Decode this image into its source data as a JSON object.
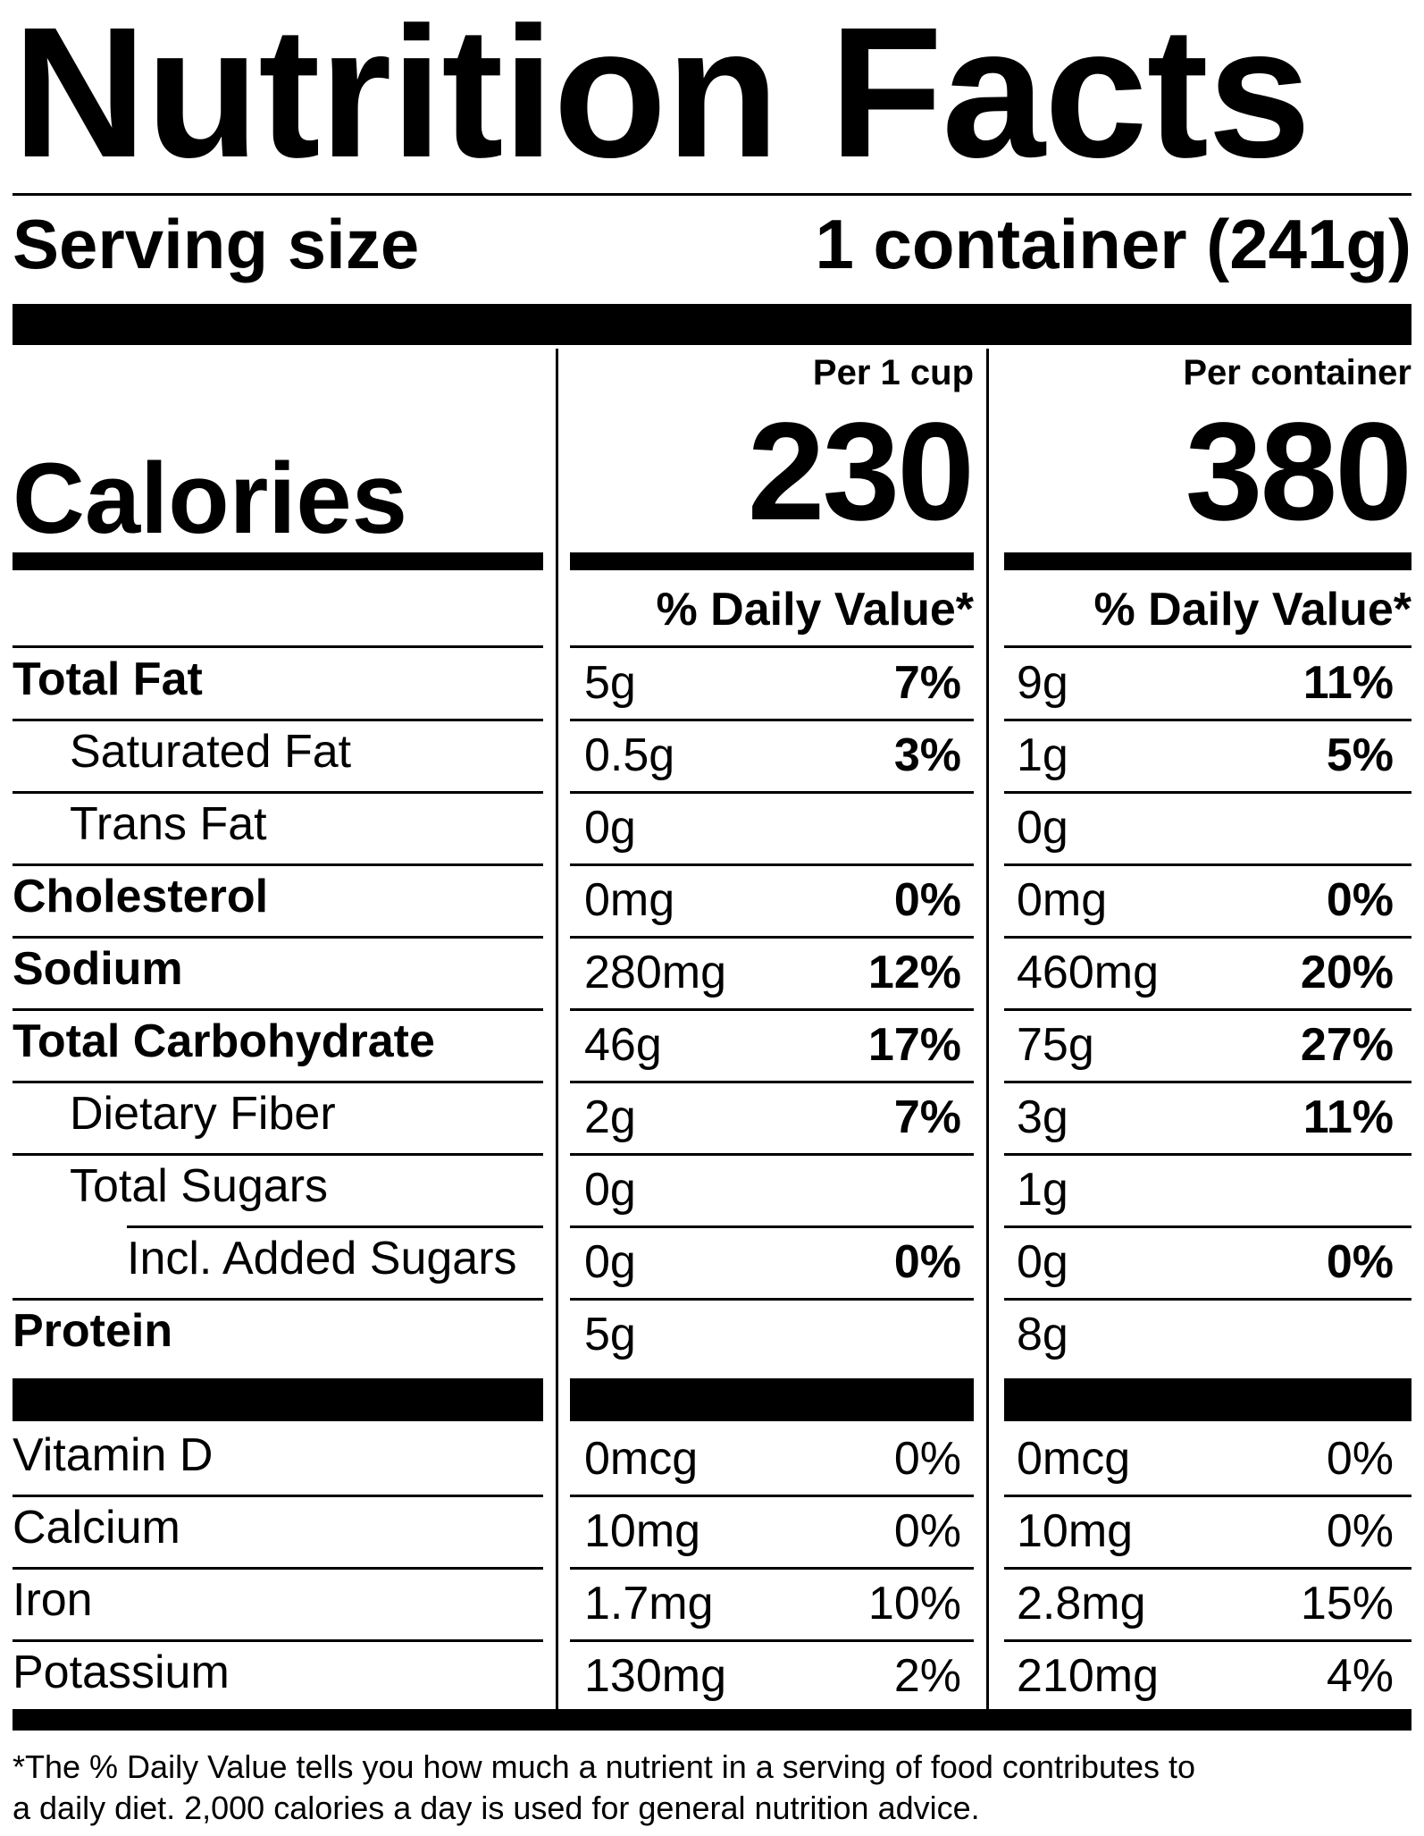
{
  "title": "Nutrition Facts",
  "serving": {
    "label": "Serving size",
    "value": "1 container (241g)"
  },
  "calories": {
    "label": "Calories",
    "col1_header": "Per 1 cup",
    "col2_header": "Per container",
    "col1_value": "230",
    "col2_value": "380"
  },
  "dv_header": "% Daily Value*",
  "nutrients": [
    {
      "name": "Total Fat",
      "bold": true,
      "indent": 0,
      "c1_amt": "5g",
      "c1_dv": "7%",
      "c2_amt": "9g",
      "c2_dv": "11%"
    },
    {
      "name": "Saturated Fat",
      "bold": false,
      "indent": 1,
      "c1_amt": "0.5g",
      "c1_dv": "3%",
      "c2_amt": "1g",
      "c2_dv": "5%"
    },
    {
      "name": "Trans Fat",
      "bold": false,
      "indent": 1,
      "c1_amt": "0g",
      "c1_dv": "",
      "c2_amt": "0g",
      "c2_dv": ""
    },
    {
      "name": "Cholesterol",
      "bold": true,
      "indent": 0,
      "c1_amt": "0mg",
      "c1_dv": "0%",
      "c2_amt": "0mg",
      "c2_dv": "0%"
    },
    {
      "name": "Sodium",
      "bold": true,
      "indent": 0,
      "c1_amt": "280mg",
      "c1_dv": "12%",
      "c2_amt": "460mg",
      "c2_dv": "20%"
    },
    {
      "name": "Total Carbohydrate",
      "bold": true,
      "indent": 0,
      "c1_amt": "46g",
      "c1_dv": "17%",
      "c2_amt": "75g",
      "c2_dv": "27%"
    },
    {
      "name": "Dietary Fiber",
      "bold": false,
      "indent": 1,
      "c1_amt": "2g",
      "c1_dv": "7%",
      "c2_amt": "3g",
      "c2_dv": "11%"
    },
    {
      "name": "Total Sugars",
      "bold": false,
      "indent": 1,
      "c1_amt": "0g",
      "c1_dv": "",
      "c2_amt": "1g",
      "c2_dv": ""
    },
    {
      "name": "Incl. Added Sugars",
      "bold": false,
      "indent": 2,
      "c1_amt": "0g",
      "c1_dv": "0%",
      "c2_amt": "0g",
      "c2_dv": "0%"
    },
    {
      "name": "Protein",
      "bold": true,
      "indent": 0,
      "c1_amt": "5g",
      "c1_dv": "",
      "c2_amt": "8g",
      "c2_dv": ""
    }
  ],
  "vitamins": [
    {
      "name": "Vitamin D",
      "c1_amt": "0mcg",
      "c1_dv": "0%",
      "c2_amt": "0mcg",
      "c2_dv": "0%"
    },
    {
      "name": "Calcium",
      "c1_amt": "10mg",
      "c1_dv": "0%",
      "c2_amt": "10mg",
      "c2_dv": "0%"
    },
    {
      "name": "Iron",
      "c1_amt": "1.7mg",
      "c1_dv": "10%",
      "c2_amt": "2.8mg",
      "c2_dv": "15%"
    },
    {
      "name": "Potassium",
      "c1_amt": "130mg",
      "c1_dv": "2%",
      "c2_amt": "210mg",
      "c2_dv": "4%"
    }
  ],
  "footnote_line1": "*The % Daily Value tells you how much a nutrient in a serving of food contributes to",
  "footnote_line2": "a daily diet. 2,000 calories a day is used for general nutrition advice."
}
